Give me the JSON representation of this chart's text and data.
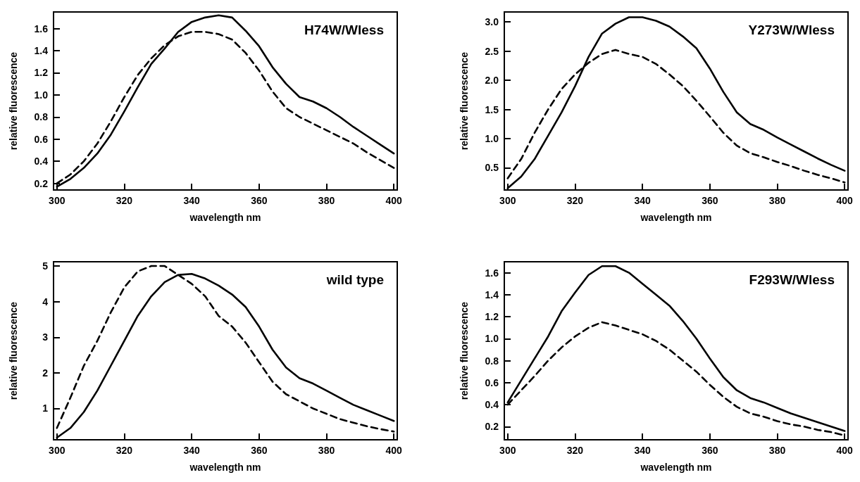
{
  "chart_data": [
    {
      "type": "line",
      "title": "H74W/Wless",
      "xlabel": "wavelength nm",
      "ylabel": "relative fluorescence",
      "marker": "none",
      "xlim": [
        299,
        401
      ],
      "ylim": [
        0.14,
        1.75
      ],
      "xticks": [
        300,
        320,
        340,
        360,
        380,
        400
      ],
      "yticks": [
        0.2,
        0.4,
        0.6,
        0.8,
        {
          "value": 1,
          "label": "1.0"
        },
        1.2,
        1.4,
        1.6
      ],
      "x": [
        300,
        304,
        308,
        312,
        316,
        320,
        324,
        328,
        332,
        336,
        340,
        344,
        348,
        352,
        356,
        360,
        364,
        368,
        372,
        376,
        380,
        384,
        388,
        392,
        396,
        400
      ],
      "series": [
        {
          "color": "#000000",
          "line_style": "solid",
          "values": [
            0.17,
            0.24,
            0.34,
            0.47,
            0.64,
            0.85,
            1.07,
            1.28,
            1.42,
            1.57,
            1.66,
            1.7,
            1.72,
            1.7,
            1.58,
            1.44,
            1.25,
            1.1,
            0.98,
            0.94,
            0.88,
            0.8,
            0.71,
            0.63,
            0.55,
            0.47
          ]
        },
        {
          "color": "#000000",
          "line_style": "dashed",
          "values": [
            0.2,
            0.28,
            0.4,
            0.56,
            0.76,
            0.98,
            1.18,
            1.33,
            1.45,
            1.53,
            1.57,
            1.57,
            1.55,
            1.5,
            1.38,
            1.22,
            1.03,
            0.88,
            0.8,
            0.74,
            0.68,
            0.62,
            0.56,
            0.48,
            0.41,
            0.34
          ]
        }
      ]
    },
    {
      "type": "line",
      "title": "Y273W/Wless",
      "xlabel": "wavelength nm",
      "ylabel": "relative fluorescence",
      "marker": "none",
      "xlim": [
        299,
        401
      ],
      "ylim": [
        0.12,
        3.17
      ],
      "xticks": [
        300,
        320,
        340,
        360,
        380,
        400
      ],
      "yticks": [
        0.5,
        {
          "value": 1,
          "label": "1.0"
        },
        1.5,
        {
          "value": 2,
          "label": "2.0"
        },
        2.5,
        {
          "value": 3,
          "label": "3.0"
        }
      ],
      "x": [
        300,
        304,
        308,
        312,
        316,
        320,
        324,
        328,
        332,
        336,
        340,
        344,
        348,
        352,
        356,
        360,
        364,
        368,
        372,
        376,
        380,
        384,
        388,
        392,
        396,
        400
      ],
      "series": [
        {
          "color": "#000000",
          "line_style": "solid",
          "values": [
            0.15,
            0.35,
            0.65,
            1.05,
            1.45,
            1.9,
            2.4,
            2.8,
            2.97,
            3.08,
            3.08,
            3.02,
            2.92,
            2.75,
            2.55,
            2.2,
            1.8,
            1.45,
            1.25,
            1.15,
            1.02,
            0.9,
            0.78,
            0.66,
            0.55,
            0.45
          ]
        },
        {
          "color": "#000000",
          "line_style": "dashed",
          "values": [
            0.32,
            0.65,
            1.1,
            1.5,
            1.85,
            2.1,
            2.3,
            2.45,
            2.52,
            2.45,
            2.4,
            2.28,
            2.1,
            1.9,
            1.65,
            1.38,
            1.1,
            0.88,
            0.75,
            0.68,
            0.6,
            0.53,
            0.45,
            0.38,
            0.32,
            0.25
          ]
        }
      ]
    },
    {
      "type": "line",
      "title": "wild type",
      "xlabel": "wavelength nm",
      "ylabel": "relative fluorescence",
      "marker": "none",
      "xlim": [
        299,
        401
      ],
      "ylim": [
        0.12,
        5.12
      ],
      "xticks": [
        300,
        320,
        340,
        360,
        380,
        400
      ],
      "yticks": [
        1,
        2,
        3,
        4,
        5
      ],
      "x": [
        300,
        304,
        308,
        312,
        316,
        320,
        324,
        328,
        332,
        336,
        340,
        344,
        348,
        352,
        356,
        360,
        364,
        368,
        372,
        376,
        380,
        384,
        388,
        392,
        396,
        400
      ],
      "series": [
        {
          "color": "#000000",
          "line_style": "solid",
          "values": [
            0.18,
            0.45,
            0.9,
            1.5,
            2.2,
            2.9,
            3.6,
            4.15,
            4.55,
            4.75,
            4.78,
            4.65,
            4.45,
            4.2,
            3.85,
            3.3,
            2.65,
            2.15,
            1.85,
            1.7,
            1.5,
            1.3,
            1.1,
            0.95,
            0.8,
            0.65
          ]
        },
        {
          "color": "#000000",
          "line_style": "dashed",
          "values": [
            0.45,
            1.3,
            2.2,
            2.9,
            3.7,
            4.4,
            4.85,
            5.0,
            5.0,
            4.75,
            4.5,
            4.15,
            3.6,
            3.3,
            2.85,
            2.3,
            1.75,
            1.4,
            1.2,
            1.0,
            0.85,
            0.7,
            0.6,
            0.5,
            0.42,
            0.35
          ]
        }
      ]
    },
    {
      "type": "line",
      "title": "F293W/Wless",
      "xlabel": "wavelength nm",
      "ylabel": "relative fluorescence",
      "marker": "none",
      "xlim": [
        299,
        401
      ],
      "ylim": [
        0.08,
        1.7
      ],
      "xticks": [
        300,
        320,
        340,
        360,
        380,
        400
      ],
      "yticks": [
        0.2,
        0.4,
        0.6,
        0.8,
        {
          "value": 1,
          "label": "1.0"
        },
        1.2,
        1.4,
        1.6
      ],
      "x": [
        300,
        304,
        308,
        312,
        316,
        320,
        324,
        328,
        332,
        336,
        340,
        344,
        348,
        352,
        356,
        360,
        364,
        368,
        372,
        376,
        380,
        384,
        388,
        392,
        396,
        400
      ],
      "series": [
        {
          "color": "#000000",
          "line_style": "solid",
          "values": [
            0.42,
            0.62,
            0.82,
            1.02,
            1.25,
            1.42,
            1.58,
            1.66,
            1.66,
            1.6,
            1.5,
            1.4,
            1.3,
            1.16,
            1.0,
            0.82,
            0.65,
            0.53,
            0.46,
            0.42,
            0.37,
            0.32,
            0.28,
            0.24,
            0.2,
            0.16
          ]
        },
        {
          "color": "#000000",
          "line_style": "dashed",
          "values": [
            0.4,
            0.53,
            0.66,
            0.8,
            0.92,
            1.02,
            1.1,
            1.15,
            1.12,
            1.08,
            1.04,
            0.98,
            0.9,
            0.8,
            0.7,
            0.58,
            0.47,
            0.38,
            0.32,
            0.29,
            0.25,
            0.22,
            0.2,
            0.17,
            0.15,
            0.12
          ]
        }
      ]
    }
  ]
}
